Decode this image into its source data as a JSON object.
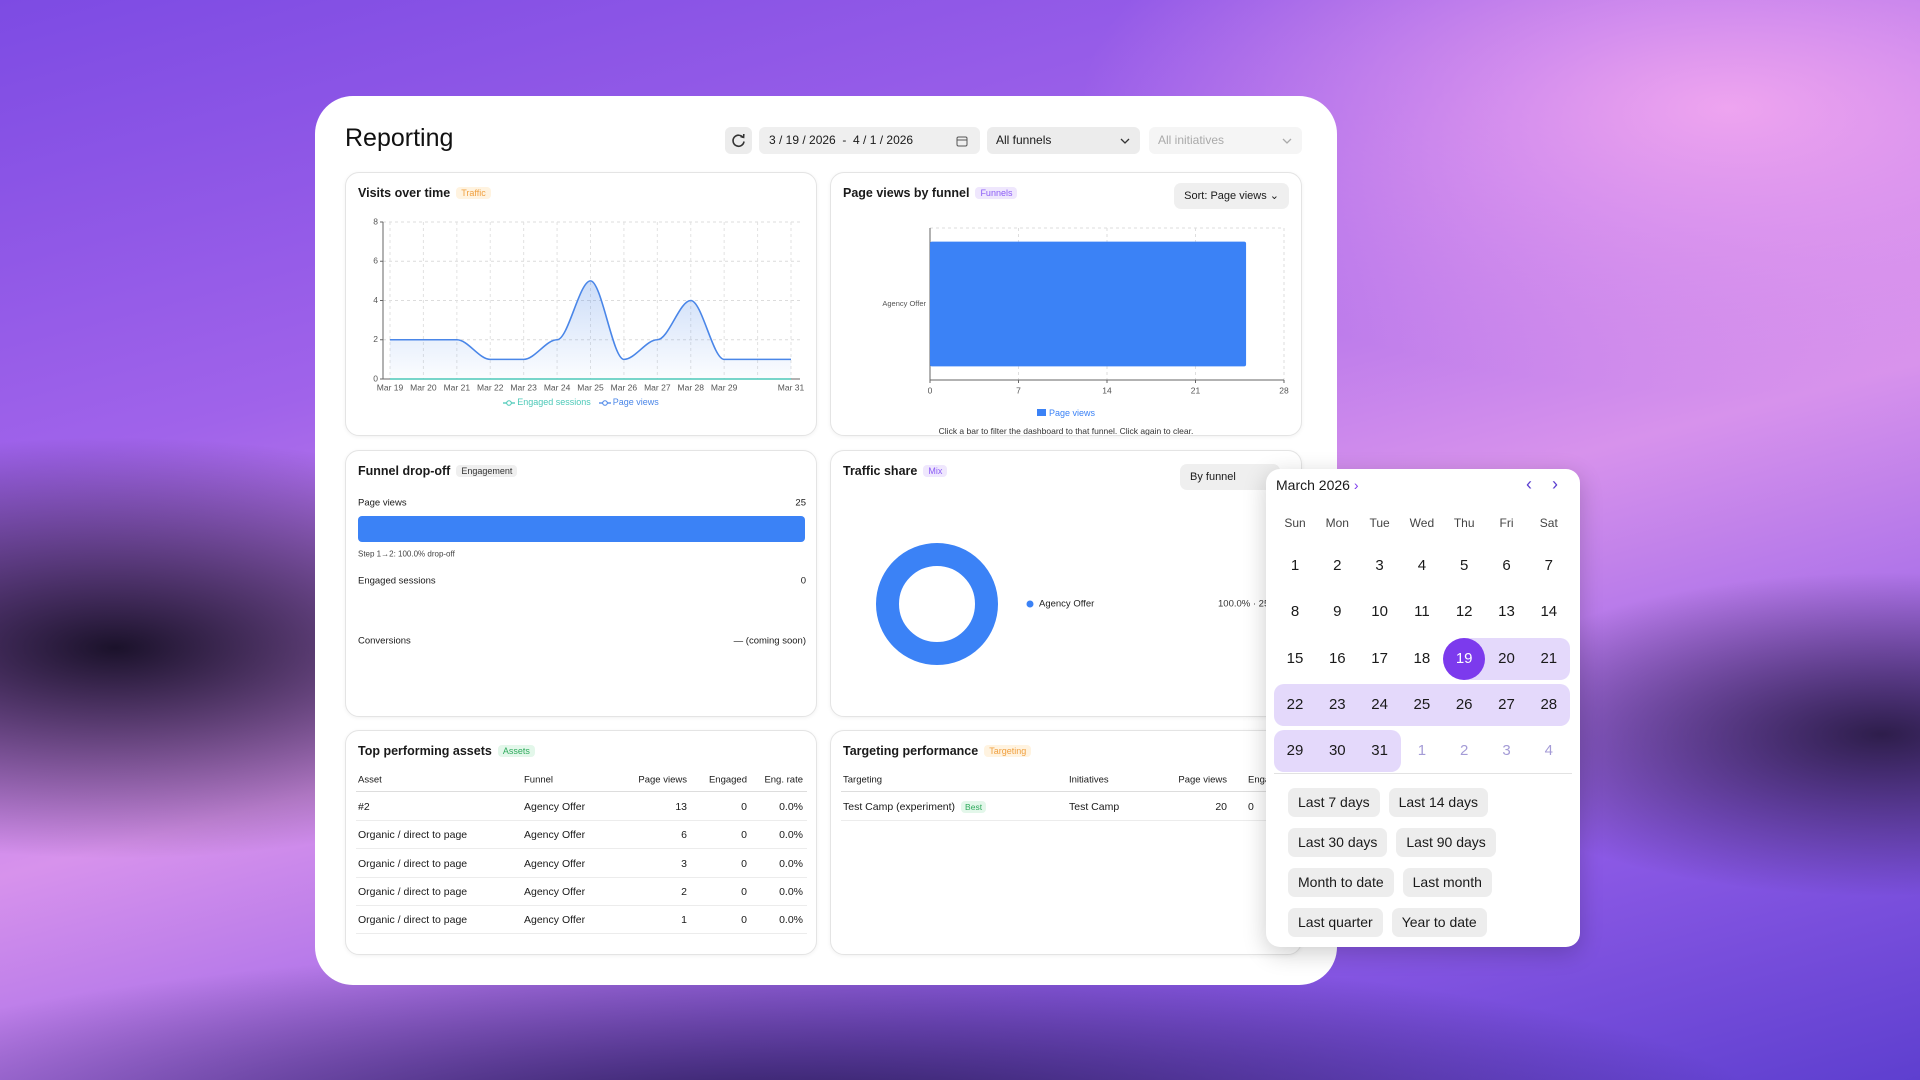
{
  "header": {
    "title": "Reporting",
    "date_range": "3 / 19 / 2026  -  4 / 1 / 2026",
    "funnel_filter": "All funnels",
    "initiative_filter": "All initiatives"
  },
  "chart_data": [
    {
      "type": "line",
      "title": "Visits over time",
      "tag": "Traffic",
      "categories": [
        "Mar 19",
        "Mar 20",
        "Mar 21",
        "Mar 22",
        "Mar 23",
        "Mar 24",
        "Mar 25",
        "Mar 26",
        "Mar 27",
        "Mar 28",
        "Mar 29",
        null,
        "Mar 31"
      ],
      "series": [
        {
          "name": "Engaged sessions",
          "color": "#4cc9b8",
          "values": [
            0,
            0,
            0,
            0,
            0,
            0,
            0,
            0,
            0,
            0,
            0,
            0,
            0
          ]
        },
        {
          "name": "Page views",
          "color": "#4a86e8",
          "values": [
            2,
            2,
            2,
            1,
            1,
            2,
            5,
            1,
            2,
            4,
            1,
            1,
            1
          ]
        }
      ],
      "ylim": [
        0,
        8
      ],
      "yticks": [
        0,
        2,
        4,
        6,
        8
      ],
      "grid": true
    },
    {
      "type": "bar",
      "orientation": "horizontal",
      "title": "Page views by funnel",
      "tag": "Funnels",
      "sort_button": "Sort: Page views",
      "categories": [
        "Agency Offer"
      ],
      "series": [
        {
          "name": "Page views",
          "color": "#3b82f6",
          "values": [
            25
          ]
        }
      ],
      "xlim": [
        0,
        28
      ],
      "xticks": [
        0,
        7,
        14,
        21,
        28
      ],
      "grid": true,
      "note": "Click a bar to filter the dashboard to that funnel. Click again to clear."
    },
    {
      "type": "pie",
      "donut": true,
      "title": "Traffic share",
      "tag": "Mix",
      "group_button": "By funnel",
      "categories": [
        "Agency Offer"
      ],
      "values": [
        100
      ],
      "value_labels": [
        "100.0% · 25"
      ],
      "colors": [
        "#3b82f6"
      ]
    }
  ],
  "funnel": {
    "title": "Funnel drop-off",
    "tag": "Engagement",
    "color": "#3b82f6",
    "steps": [
      {
        "label": "Page views",
        "value": 25
      },
      {
        "label": "Engaged sessions",
        "value": 0
      },
      {
        "label": "Conversions",
        "value_text": "— (coming soon)"
      }
    ],
    "dropoff_note": "Step 1→2: 100.0% drop-off"
  },
  "assets_table": {
    "title": "Top performing assets",
    "tag": "Assets",
    "columns": [
      "Asset",
      "Funnel",
      "Page views",
      "Engaged",
      "Eng. rate"
    ],
    "rows": [
      [
        "#2",
        "Agency Offer",
        "13",
        "0",
        "0.0%"
      ],
      [
        "Organic / direct to page",
        "Agency Offer",
        "6",
        "0",
        "0.0%"
      ],
      [
        "Organic / direct to page",
        "Agency Offer",
        "3",
        "0",
        "0.0%"
      ],
      [
        "Organic / direct to page",
        "Agency Offer",
        "2",
        "0",
        "0.0%"
      ],
      [
        "Organic / direct to page",
        "Agency Offer",
        "1",
        "0",
        "0.0%"
      ]
    ]
  },
  "targeting_table": {
    "title": "Targeting performance",
    "tag": "Targeting",
    "columns": [
      "Targeting",
      "Initiatives",
      "Page views",
      "Engaged"
    ],
    "rows": [
      {
        "targeting": "Test Camp (experiment)",
        "badge": "Best",
        "initiatives": "Test Camp",
        "page_views": "20",
        "engaged": "0"
      }
    ]
  },
  "calendar": {
    "month_label": "March 2026",
    "weekdays": [
      "Sun",
      "Mon",
      "Tue",
      "Wed",
      "Thu",
      "Fri",
      "Sat"
    ],
    "days": [
      1,
      2,
      3,
      4,
      5,
      6,
      7,
      8,
      9,
      10,
      11,
      12,
      13,
      14,
      15,
      16,
      17,
      18,
      19,
      20,
      21,
      22,
      23,
      24,
      25,
      26,
      27,
      28,
      29,
      30,
      31
    ],
    "next_month_days": [
      1,
      2,
      3,
      4
    ],
    "range_start": 19,
    "range_end": 31,
    "presets": [
      "Last 7 days",
      "Last 14 days",
      "Last 30 days",
      "Last 90 days",
      "Month to date",
      "Last month",
      "Last quarter",
      "Year to date"
    ]
  }
}
